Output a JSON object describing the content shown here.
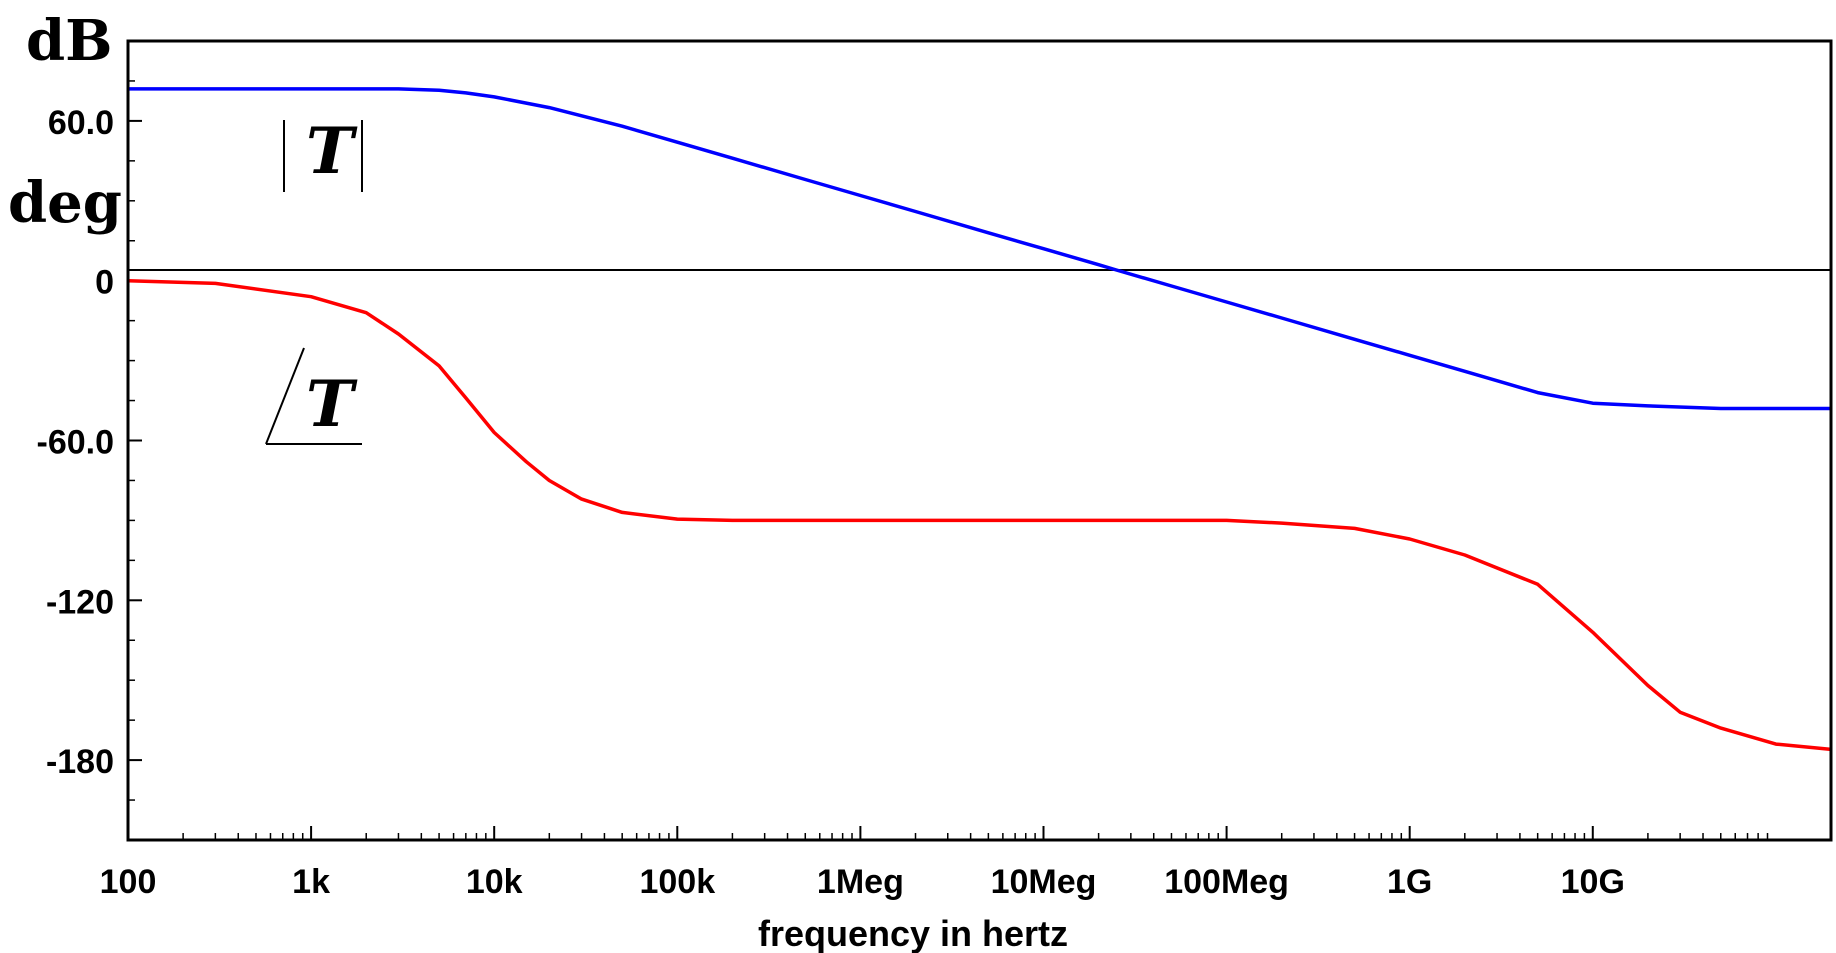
{
  "chart_data": {
    "type": "line",
    "xscale": "log",
    "xlabel": "frequency in hertz",
    "y_units": [
      "dB",
      "deg"
    ],
    "xlim": [
      100,
      200000000000
    ],
    "ylim": [
      -210,
      90
    ],
    "x_ticks": [
      {
        "value": 100,
        "label": "100"
      },
      {
        "value": 1000,
        "label": "1k"
      },
      {
        "value": 10000,
        "label": "10k"
      },
      {
        "value": 100000,
        "label": "100k"
      },
      {
        "value": 1000000,
        "label": "1Meg"
      },
      {
        "value": 10000000,
        "label": "10Meg"
      },
      {
        "value": 100000000,
        "label": "100Meg"
      },
      {
        "value": 1000000000,
        "label": "1G"
      },
      {
        "value": 10000000000,
        "label": "10G"
      }
    ],
    "y_ticks": [
      {
        "value": 60,
        "label": "60.0"
      },
      {
        "value": 0,
        "label": "0"
      },
      {
        "value": -60,
        "label": "-60.0"
      },
      {
        "value": -120,
        "label": "-120"
      },
      {
        "value": -180,
        "label": "-180"
      }
    ],
    "grid": false,
    "zero_line": true,
    "series": [
      {
        "name": "|T|",
        "color": "#0000ff",
        "x": [
          100,
          1000,
          3000,
          5000,
          7000,
          10000,
          20000,
          50000,
          100000,
          200000,
          500000,
          1000000,
          2000000,
          5000000,
          10000000,
          20000000,
          25000000,
          50000000,
          100000000,
          200000000,
          500000000,
          1000000000,
          2000000000,
          5000000000,
          10000000000,
          20000000000,
          50000000000,
          200000000000
        ],
        "y": [
          72,
          72,
          72,
          71.5,
          70.5,
          69,
          65,
          58,
          52,
          46,
          38,
          32,
          26,
          18,
          12,
          6,
          4,
          -2,
          -8,
          -14,
          -22,
          -28,
          -34,
          -42,
          -46,
          -47,
          -48,
          -48
        ]
      },
      {
        "name": "∠T",
        "color": "#ff0000",
        "x": [
          100,
          300,
          1000,
          2000,
          3000,
          5000,
          7000,
          10000,
          15000,
          20000,
          30000,
          50000,
          100000,
          200000,
          500000,
          1000000,
          3000000,
          10000000,
          30000000,
          100000000,
          200000000,
          500000000,
          1000000000,
          2000000000,
          5000000000,
          10000000000,
          20000000000,
          30000000000,
          50000000000,
          100000000000,
          200000000000
        ],
        "y": [
          0,
          -1,
          -6,
          -12,
          -20,
          -32,
          -44,
          -57,
          -68,
          -75,
          -82,
          -87,
          -89.5,
          -90,
          -90,
          -90,
          -90,
          -90,
          -90,
          -90,
          -91,
          -93,
          -97,
          -103,
          -114,
          -132,
          -152,
          -162,
          -168,
          -174,
          -176
        ]
      }
    ],
    "annotations": [
      {
        "text": "T",
        "kind": "magnitude-bars",
        "series": "|T|"
      },
      {
        "text": "T",
        "kind": "angle-symbol",
        "series": "∠T"
      }
    ]
  }
}
